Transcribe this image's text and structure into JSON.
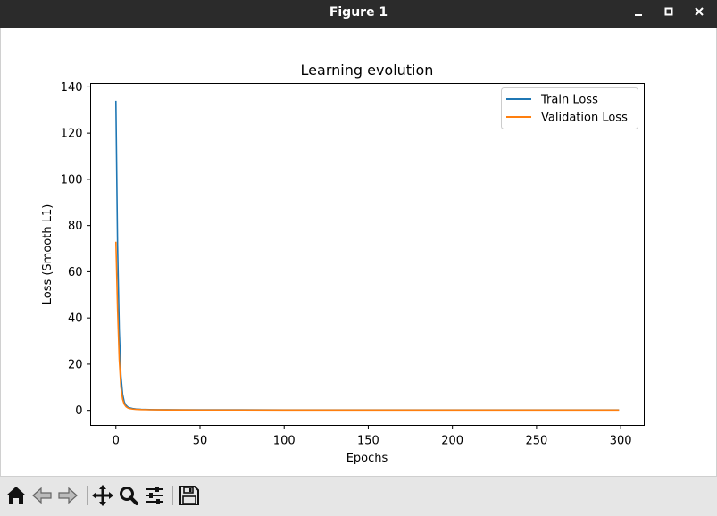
{
  "window": {
    "title": "Figure 1"
  },
  "toolbar": {
    "buttons": [
      "home",
      "back",
      "forward",
      "pan",
      "zoom",
      "configure-subplots",
      "save"
    ]
  },
  "colors": {
    "train": "#1f77b4",
    "validation": "#ff7f0e",
    "titlebar": "#2b2b2b",
    "toolbar": "#e6e6e6"
  },
  "chart_data": {
    "type": "line",
    "title": "Learning evolution",
    "xlabel": "Epochs",
    "ylabel": "Loss (Smooth L1)",
    "xlim": [
      -15,
      314
    ],
    "ylim": [
      -6.5,
      141.5
    ],
    "xticks": [
      0,
      50,
      100,
      150,
      200,
      250,
      300
    ],
    "yticks": [
      0,
      20,
      40,
      60,
      80,
      100,
      120,
      140
    ],
    "grid": false,
    "legend_position": "top-right",
    "series": [
      {
        "name": "Train Loss",
        "color": "#1f77b4",
        "x": [
          0,
          1,
          2,
          3,
          4,
          5,
          6,
          7,
          8,
          10,
          12,
          15,
          20,
          25,
          30,
          40,
          50,
          75,
          100,
          150,
          200,
          250,
          299
        ],
        "y": [
          134,
          72,
          35,
          15,
          7,
          3.6,
          2.2,
          1.5,
          1.1,
          0.8,
          0.6,
          0.45,
          0.35,
          0.3,
          0.28,
          0.25,
          0.24,
          0.22,
          0.21,
          0.2,
          0.2,
          0.19,
          0.19
        ]
      },
      {
        "name": "Validation Loss",
        "color": "#ff7f0e",
        "x": [
          0,
          1,
          2,
          3,
          4,
          5,
          6,
          7,
          8,
          10,
          12,
          15,
          20,
          25,
          30,
          40,
          50,
          75,
          100,
          150,
          200,
          250,
          299
        ],
        "y": [
          73,
          44,
          22,
          10,
          4.8,
          2.6,
          1.6,
          1.1,
          0.8,
          0.55,
          0.42,
          0.32,
          0.26,
          0.22,
          0.2,
          0.18,
          0.17,
          0.16,
          0.15,
          0.15,
          0.14,
          0.14,
          0.14
        ]
      }
    ]
  }
}
